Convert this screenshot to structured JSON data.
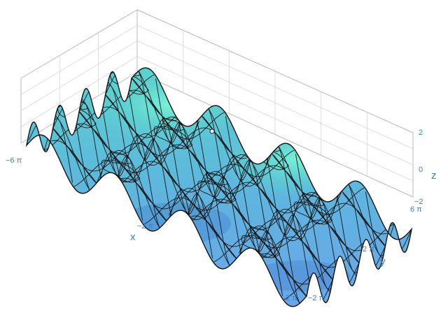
{
  "chart_data": {
    "type": "surface3d",
    "title": "",
    "function": "z = sin(x) + sin(y)",
    "x": {
      "label": "x",
      "range": [
        "-6π",
        "2π"
      ],
      "ticks": [
        "−6 π",
        "−2 π",
        "2 π"
      ]
    },
    "y": {
      "label": "y",
      "range": [
        "-2π",
        "6π"
      ],
      "ticks": [
        "−2 π",
        "2 π",
        "6 π"
      ]
    },
    "z": {
      "label": "z",
      "range": [
        -2,
        2
      ],
      "ticks": [
        "−2",
        "0",
        "2"
      ]
    },
    "grid": true,
    "mesh": "contour curves of the surface shown as black lines",
    "highlighted_point": {
      "x": 0,
      "y": 0,
      "z": 0
    },
    "colors": {
      "low": "#6fa8ee",
      "high": "#6ff0d4",
      "mesh": "#111111",
      "axis_text": "#3d7fb8",
      "grid": "#cfcfcf"
    }
  }
}
